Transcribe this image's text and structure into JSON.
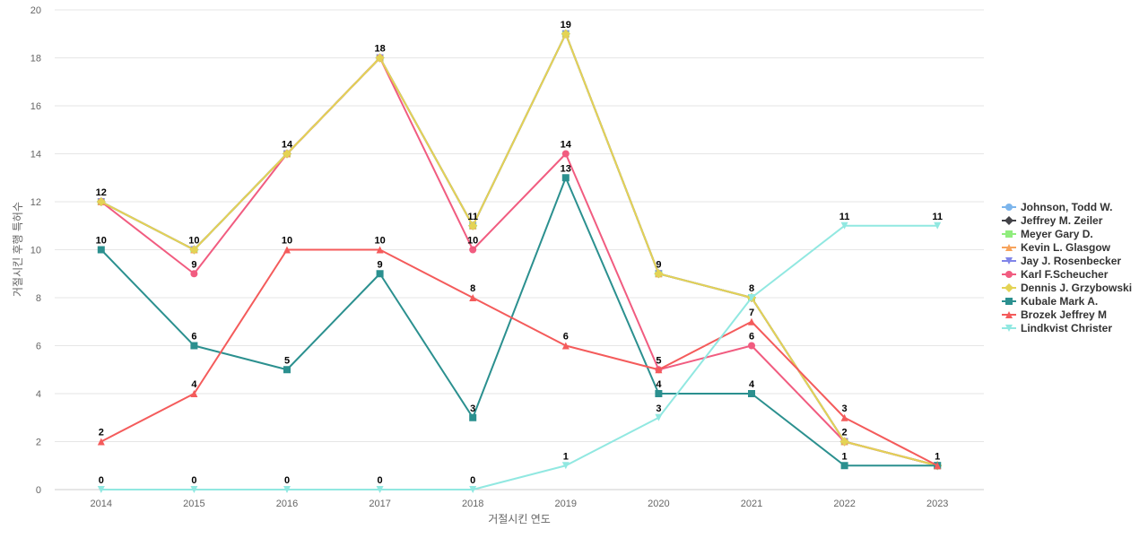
{
  "chart_data": {
    "type": "line",
    "title": "",
    "xlabel": "거절시킨 연도",
    "ylabel": "거절시킨 후행 특허수",
    "x": [
      "2014",
      "2015",
      "2016",
      "2017",
      "2018",
      "2019",
      "2020",
      "2021",
      "2022",
      "2023"
    ],
    "ylim": [
      0,
      20
    ],
    "yticks": [
      0,
      2,
      4,
      6,
      8,
      10,
      12,
      14,
      16,
      18,
      20
    ],
    "grid": true,
    "legend_position": "right",
    "series": [
      {
        "name": "Johnson, Todd W.",
        "color": "#7cb5ec",
        "marker": "circle",
        "values": [
          12,
          10,
          14,
          18,
          11,
          19,
          9,
          8,
          2,
          1
        ],
        "show_labels": false
      },
      {
        "name": "Jeffrey M. Zeiler",
        "color": "#434348",
        "marker": "diamond",
        "values": [
          12,
          10,
          14,
          18,
          11,
          19,
          9,
          8,
          2,
          1
        ],
        "show_labels": false
      },
      {
        "name": "Meyer Gary D.",
        "color": "#90ed7d",
        "marker": "square",
        "values": [
          12,
          10,
          14,
          18,
          11,
          19,
          9,
          8,
          2,
          1
        ],
        "show_labels": false
      },
      {
        "name": "Kevin L. Glasgow",
        "color": "#f7a35c",
        "marker": "triangle",
        "values": [
          12,
          10,
          14,
          18,
          11,
          19,
          9,
          8,
          2,
          1
        ],
        "show_labels": false
      },
      {
        "name": "Jay J. Rosenbecker",
        "color": "#8085e9",
        "marker": "triangle-down",
        "values": [
          12,
          10,
          14,
          18,
          11,
          19,
          9,
          8,
          2,
          1
        ],
        "show_labels": true
      },
      {
        "name": "Karl F.Scheucher",
        "color": "#f15c80",
        "marker": "circle",
        "values": [
          12,
          9,
          14,
          18,
          10,
          14,
          5,
          6,
          2,
          1
        ],
        "show_labels": true
      },
      {
        "name": "Dennis J. Grzybowski",
        "color": "#e4d354",
        "marker": "diamond",
        "values": [
          12,
          10,
          14,
          18,
          11,
          19,
          9,
          8,
          2,
          1
        ],
        "show_labels": false
      },
      {
        "name": "Kubale Mark A.",
        "color": "#2b908f",
        "marker": "square",
        "values": [
          10,
          6,
          5,
          9,
          3,
          13,
          4,
          4,
          1,
          1
        ],
        "show_labels": true
      },
      {
        "name": "Brozek Jeffrey M",
        "color": "#f45b5b",
        "marker": "triangle",
        "values": [
          2,
          4,
          10,
          10,
          8,
          6,
          5,
          7,
          3,
          1
        ],
        "show_labels": true
      },
      {
        "name": "Lindkvist Christer",
        "color": "#91e8e1",
        "marker": "triangle-down",
        "values": [
          0,
          0,
          0,
          0,
          0,
          1,
          3,
          8,
          11,
          11
        ],
        "show_labels": true
      }
    ]
  }
}
